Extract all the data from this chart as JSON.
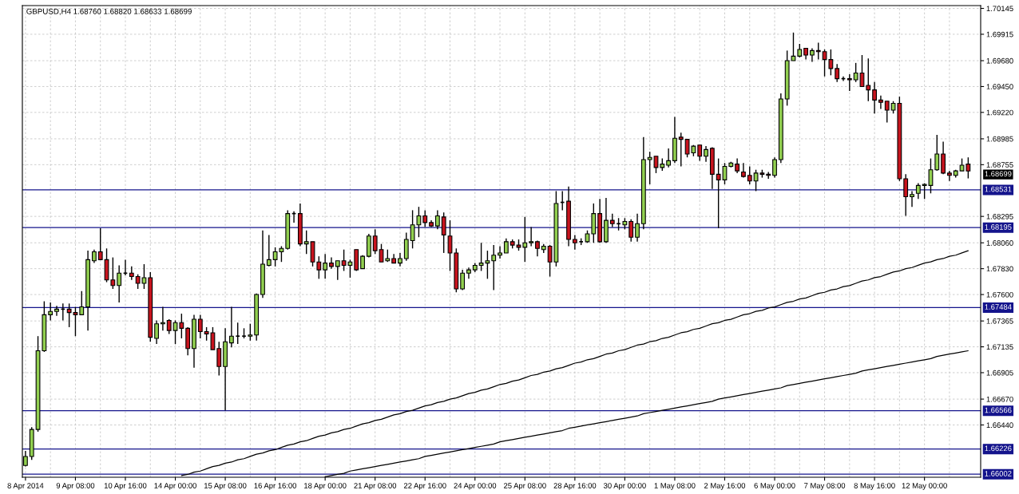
{
  "chart_data": {
    "type": "candlestick",
    "title": "GBPUSD,H4 1.68760 1.68820 1.68633 1.68699",
    "categories": [
      "8 Apr 2014",
      null,
      null,
      null,
      null,
      null,
      null,
      null,
      "9 Apr 08:00",
      null,
      null,
      null,
      null,
      null,
      null,
      null,
      "10 Apr 16:00",
      null,
      null,
      null,
      null,
      null,
      null,
      null,
      "14 Apr 00:00",
      null,
      null,
      null,
      null,
      null,
      null,
      null,
      "15 Apr 08:00",
      null,
      null,
      null,
      null,
      null,
      null,
      null,
      "16 Apr 16:00",
      null,
      null,
      null,
      null,
      null,
      null,
      null,
      "18 Apr 00:00",
      null,
      null,
      null,
      null,
      null,
      null,
      null,
      "21 Apr 08:00",
      null,
      null,
      null,
      null,
      null,
      null,
      null,
      "22 Apr 16:00",
      null,
      null,
      null,
      null,
      null,
      null,
      null,
      "24 Apr 00:00",
      null,
      null,
      null,
      null,
      null,
      null,
      null,
      "25 Apr 08:00",
      null,
      null,
      null,
      null,
      null,
      null,
      null,
      "28 Apr 16:00",
      null,
      null,
      null,
      null,
      null,
      null,
      null,
      "30 Apr 00:00",
      null,
      null,
      null,
      null,
      null,
      null,
      null,
      "1 May 08:00",
      null,
      null,
      null,
      null,
      null,
      null,
      null,
      "2 May 16:00",
      null,
      null,
      null,
      null,
      null,
      null,
      null,
      "6 May 00:00",
      null,
      null,
      null,
      null,
      null,
      null,
      null,
      "7 May 08:00",
      null,
      null,
      null,
      null,
      null,
      null,
      null,
      "8 May 16:00",
      null,
      null,
      null,
      null,
      null,
      null,
      null,
      "12 May 00:00",
      null,
      null,
      null,
      null,
      null,
      null,
      null
    ],
    "ohlc": [
      [
        1.6608,
        1.6621,
        1.6607,
        1.6616
      ],
      [
        1.6616,
        1.6642,
        1.6613,
        1.664
      ],
      [
        1.664,
        1.6723,
        1.6638,
        1.671
      ],
      [
        1.671,
        1.6754,
        1.6709,
        1.6742
      ],
      [
        1.6742,
        1.6753,
        1.6737,
        1.6745
      ],
      [
        1.6745,
        1.675,
        1.6741,
        1.6747
      ],
      [
        1.6747,
        1.6752,
        1.6737,
        1.6747
      ],
      [
        1.6747,
        1.6752,
        1.6731,
        1.6744
      ],
      [
        1.6744,
        1.6749,
        1.6723,
        1.6742
      ],
      [
        1.6742,
        1.6763,
        1.6742,
        1.6749
      ],
      [
        1.6749,
        1.6799,
        1.6728,
        1.6791
      ],
      [
        1.679,
        1.68,
        1.6788,
        1.6798
      ],
      [
        1.6798,
        1.6819,
        1.6791,
        1.6791
      ],
      [
        1.6791,
        1.6801,
        1.6771,
        1.6773
      ],
      [
        1.6773,
        1.6793,
        1.6765,
        1.6768
      ],
      [
        1.6768,
        1.6786,
        1.6753,
        1.6779
      ],
      [
        1.6779,
        1.6791,
        1.6777,
        1.6779
      ],
      [
        1.6779,
        1.6785,
        1.6773,
        1.6776
      ],
      [
        1.6776,
        1.6778,
        1.6765,
        1.677
      ],
      [
        1.677,
        1.6787,
        1.6765,
        1.6775
      ],
      [
        1.6775,
        1.678,
        1.6718,
        1.6722
      ],
      [
        1.6721,
        1.6737,
        1.6716,
        1.6734
      ],
      [
        1.6734,
        1.6749,
        1.6728,
        1.6735
      ],
      [
        1.6737,
        1.6738,
        1.6725,
        1.6728
      ],
      [
        1.6728,
        1.6737,
        1.6716,
        1.6735
      ],
      [
        1.6735,
        1.6743,
        1.6721,
        1.673
      ],
      [
        1.673,
        1.6731,
        1.6706,
        1.6712
      ],
      [
        1.6712,
        1.6742,
        1.6695,
        1.6738
      ],
      [
        1.6738,
        1.6742,
        1.6721,
        1.6727
      ],
      [
        1.6727,
        1.6731,
        1.6719,
        1.6725
      ],
      [
        1.6726,
        1.6731,
        1.6711,
        1.6711
      ],
      [
        1.6712,
        1.6718,
        1.6688,
        1.6696
      ],
      [
        1.6696,
        1.673,
        1.6657,
        1.6718
      ],
      [
        1.6717,
        1.6749,
        1.6713,
        1.6723
      ],
      [
        1.6723,
        1.6735,
        1.6716,
        1.6723
      ],
      [
        1.6723,
        1.673,
        1.6721,
        1.6723
      ],
      [
        1.6723,
        1.6734,
        1.6719,
        1.6724
      ],
      [
        1.6724,
        1.6761,
        1.6719,
        1.676
      ],
      [
        1.676,
        1.6817,
        1.6757,
        1.6787
      ],
      [
        1.6786,
        1.6813,
        1.6785,
        1.6791
      ],
      [
        1.6791,
        1.6802,
        1.6785,
        1.6798
      ],
      [
        1.6798,
        1.6803,
        1.6789,
        1.6801
      ],
      [
        1.6801,
        1.6835,
        1.68,
        1.6832
      ],
      [
        1.6832,
        1.6834,
        1.6824,
        1.6832
      ],
      [
        1.6832,
        1.6841,
        1.6803,
        1.6805
      ],
      [
        1.6805,
        1.6817,
        1.6796,
        1.6807
      ],
      [
        1.6807,
        1.6807,
        1.6785,
        1.6789
      ],
      [
        1.6789,
        1.6794,
        1.6774,
        1.6782
      ],
      [
        1.6782,
        1.6796,
        1.6774,
        1.6788
      ],
      [
        1.6788,
        1.6793,
        1.6783,
        1.6785
      ],
      [
        1.6785,
        1.679,
        1.6773,
        1.679
      ],
      [
        1.679,
        1.68,
        1.6781,
        1.6786
      ],
      [
        1.6786,
        1.6791,
        1.6775,
        1.6789
      ],
      [
        1.68,
        1.68,
        1.6781,
        1.6782
      ],
      [
        1.6783,
        1.6795,
        1.6783,
        1.6794
      ],
      [
        1.6794,
        1.6814,
        1.6793,
        1.6812
      ],
      [
        1.6812,
        1.6818,
        1.6796,
        1.6799
      ],
      [
        1.68,
        1.6805,
        1.6789,
        1.6789
      ],
      [
        1.679,
        1.68,
        1.6789,
        1.6792
      ],
      [
        1.6792,
        1.6796,
        1.6788,
        1.6788
      ],
      [
        1.6788,
        1.6797,
        1.6785,
        1.6792
      ],
      [
        1.6792,
        1.6815,
        1.679,
        1.6809
      ],
      [
        1.6808,
        1.6835,
        1.6801,
        1.6822
      ],
      [
        1.6822,
        1.6838,
        1.6811,
        1.683
      ],
      [
        1.683,
        1.6835,
        1.682,
        1.6824
      ],
      [
        1.6824,
        1.6826,
        1.682,
        1.6821
      ],
      [
        1.6821,
        1.6835,
        1.6818,
        1.683
      ],
      [
        1.6829,
        1.6833,
        1.6797,
        1.6813
      ],
      [
        1.6812,
        1.6826,
        1.6781,
        1.6797
      ],
      [
        1.6797,
        1.6801,
        1.6762,
        1.6765
      ],
      [
        1.6765,
        1.6782,
        1.6764,
        1.6779
      ],
      [
        1.6779,
        1.6784,
        1.6774,
        1.6782
      ],
      [
        1.6782,
        1.6788,
        1.678,
        1.6786
      ],
      [
        1.6786,
        1.6806,
        1.6781,
        1.6788
      ],
      [
        1.6788,
        1.6799,
        1.6774,
        1.679
      ],
      [
        1.679,
        1.6804,
        1.6764,
        1.6795
      ],
      [
        1.6795,
        1.6803,
        1.6792,
        1.6797
      ],
      [
        1.6797,
        1.681,
        1.6797,
        1.6807
      ],
      [
        1.6807,
        1.6809,
        1.6801,
        1.6804
      ],
      [
        1.6804,
        1.6809,
        1.6799,
        1.6802
      ],
      [
        1.6802,
        1.6829,
        1.6789,
        1.6806
      ],
      [
        1.6806,
        1.682,
        1.6803,
        1.6807
      ],
      [
        1.6807,
        1.6808,
        1.6794,
        1.6801
      ],
      [
        1.68,
        1.6805,
        1.6797,
        1.6803
      ],
      [
        1.6803,
        1.6804,
        1.6776,
        1.6789
      ],
      [
        1.6789,
        1.6852,
        1.6785,
        1.6841
      ],
      [
        1.6842,
        1.6852,
        1.6835,
        1.6842
      ],
      [
        1.6843,
        1.6856,
        1.6803,
        1.6809
      ],
      [
        1.6809,
        1.6813,
        1.68,
        1.6806
      ],
      [
        1.6807,
        1.681,
        1.6804,
        1.6807
      ],
      [
        1.6807,
        1.6817,
        1.6806,
        1.6814
      ],
      [
        1.6814,
        1.6841,
        1.6806,
        1.6832
      ],
      [
        1.6832,
        1.6845,
        1.6806,
        1.6807
      ],
      [
        1.6807,
        1.6846,
        1.6806,
        1.6826
      ],
      [
        1.6826,
        1.6832,
        1.682,
        1.6823
      ],
      [
        1.6823,
        1.6828,
        1.6817,
        1.6823
      ],
      [
        1.6822,
        1.6828,
        1.6818,
        1.6825
      ],
      [
        1.6825,
        1.6827,
        1.6807,
        1.6811
      ],
      [
        1.6811,
        1.6832,
        1.6807,
        1.6823
      ],
      [
        1.6823,
        1.69,
        1.6818,
        1.688
      ],
      [
        1.688,
        1.6887,
        1.6858,
        1.6882
      ],
      [
        1.6883,
        1.6883,
        1.6868,
        1.6873
      ],
      [
        1.6873,
        1.6881,
        1.687,
        1.6876
      ],
      [
        1.6875,
        1.689,
        1.6873,
        1.6879
      ],
      [
        1.6879,
        1.6918,
        1.6877,
        1.6899
      ],
      [
        1.69,
        1.6904,
        1.6874,
        1.6898
      ],
      [
        1.6898,
        1.6898,
        1.6882,
        1.6885
      ],
      [
        1.6886,
        1.6893,
        1.6883,
        1.6892
      ],
      [
        1.6893,
        1.6893,
        1.6879,
        1.6883
      ],
      [
        1.6883,
        1.6892,
        1.6878,
        1.6889
      ],
      [
        1.689,
        1.6891,
        1.6854,
        1.6867
      ],
      [
        1.6867,
        1.6881,
        1.6819,
        1.6862
      ],
      [
        1.6862,
        1.6877,
        1.6858,
        1.6874
      ],
      [
        1.6874,
        1.6878,
        1.6873,
        1.6877
      ],
      [
        1.6876,
        1.6881,
        1.6868,
        1.687
      ],
      [
        1.6869,
        1.6877,
        1.6864,
        1.6865
      ],
      [
        1.6866,
        1.6874,
        1.6858,
        1.6861
      ],
      [
        1.6861,
        1.6871,
        1.6852,
        1.6868
      ],
      [
        1.6868,
        1.6871,
        1.6864,
        1.6867
      ],
      [
        1.6867,
        1.6869,
        1.6863,
        1.6866
      ],
      [
        1.6866,
        1.6882,
        1.6864,
        1.688
      ],
      [
        1.688,
        1.6939,
        1.6877,
        1.6934
      ],
      [
        1.6934,
        1.6977,
        1.6928,
        1.6968
      ],
      [
        1.6968,
        1.6993,
        1.6968,
        1.6972
      ],
      [
        1.6972,
        1.6983,
        1.6971,
        1.6978
      ],
      [
        1.6979,
        1.6979,
        1.6969,
        1.6973
      ],
      [
        1.6973,
        1.6979,
        1.6967,
        1.6977
      ],
      [
        1.6977,
        1.6984,
        1.6969,
        1.6976
      ],
      [
        1.6976,
        1.6978,
        1.6954,
        1.6969
      ],
      [
        1.6969,
        1.6978,
        1.6955,
        1.6961
      ],
      [
        1.6961,
        1.6965,
        1.6949,
        1.6952
      ],
      [
        1.6952,
        1.6954,
        1.695,
        1.6952
      ],
      [
        1.6952,
        1.6956,
        1.6941,
        1.6951
      ],
      [
        1.6951,
        1.6966,
        1.6949,
        1.6957
      ],
      [
        1.6957,
        1.6973,
        1.6945,
        1.6945
      ],
      [
        1.6946,
        1.697,
        1.6932,
        1.6942
      ],
      [
        1.6942,
        1.6949,
        1.6921,
        1.6933
      ],
      [
        1.6933,
        1.6937,
        1.6925,
        1.6931
      ],
      [
        1.6932,
        1.6932,
        1.6913,
        1.6924
      ],
      [
        1.6924,
        1.6932,
        1.6921,
        1.693
      ],
      [
        1.693,
        1.6936,
        1.6861,
        1.6863
      ],
      [
        1.6863,
        1.6867,
        1.683,
        1.6847
      ],
      [
        1.6847,
        1.6852,
        1.6838,
        1.6849
      ],
      [
        1.685,
        1.6859,
        1.6845,
        1.6857
      ],
      [
        1.6857,
        1.6859,
        1.6845,
        1.6858
      ],
      [
        1.6857,
        1.6881,
        1.685,
        1.6871
      ],
      [
        1.6871,
        1.6902,
        1.687,
        1.6885
      ],
      [
        1.6885,
        1.6896,
        1.6867,
        1.6868
      ],
      [
        1.6868,
        1.687,
        1.6861,
        1.6866
      ],
      [
        1.6866,
        1.6871,
        1.6864,
        1.687
      ],
      [
        1.687,
        1.6881,
        1.687,
        1.6875
      ],
      [
        1.6876,
        1.6882,
        1.68633,
        1.68699
      ]
    ],
    "colors": [
      "#92d050",
      "#92d050",
      "#92d050",
      "#92d050",
      "#92d050",
      "#92d050",
      "#000000",
      "#c8141e",
      "#c8141e",
      "#92d050",
      "#92d050",
      "#92d050",
      "#c8141e",
      "#c8141e",
      "#c8141e",
      "#92d050",
      "#000000",
      "#c8141e",
      "#c8141e",
      "#92d050",
      "#c8141e",
      "#92d050",
      "#92d050",
      "#c8141e",
      "#92d050",
      "#c8141e",
      "#c8141e",
      "#92d050",
      "#c8141e",
      "#c8141e",
      "#c8141e",
      "#c8141e",
      "#92d050",
      "#92d050",
      "#000000",
      "#000000",
      "#92d050",
      "#92d050",
      "#92d050",
      "#92d050",
      "#92d050",
      "#92d050",
      "#92d050",
      "#000000",
      "#c8141e",
      "#92d050",
      "#c8141e",
      "#c8141e",
      "#92d050",
      "#c8141e",
      "#92d050",
      "#c8141e",
      "#92d050",
      "#c8141e",
      "#92d050",
      "#92d050",
      "#c8141e",
      "#c8141e",
      "#92d050",
      "#c8141e",
      "#92d050",
      "#92d050",
      "#92d050",
      "#92d050",
      "#c8141e",
      "#c8141e",
      "#92d050",
      "#c8141e",
      "#c8141e",
      "#c8141e",
      "#92d050",
      "#92d050",
      "#92d050",
      "#92d050",
      "#92d050",
      "#92d050",
      "#92d050",
      "#92d050",
      "#c8141e",
      "#c8141e",
      "#92d050",
      "#92d050",
      "#c8141e",
      "#92d050",
      "#c8141e",
      "#92d050",
      "#000000",
      "#c8141e",
      "#c8141e",
      "#000000",
      "#92d050",
      "#92d050",
      "#c8141e",
      "#92d050",
      "#c8141e",
      "#000000",
      "#92d050",
      "#c8141e",
      "#92d050",
      "#92d050",
      "#92d050",
      "#c8141e",
      "#92d050",
      "#92d050",
      "#92d050",
      "#c8141e",
      "#c8141e",
      "#92d050",
      "#c8141e",
      "#92d050",
      "#c8141e",
      "#c8141e",
      "#92d050",
      "#92d050",
      "#c8141e",
      "#c8141e",
      "#c8141e",
      "#92d050",
      "#c8141e",
      "#c8141e",
      "#92d050",
      "#92d050",
      "#92d050",
      "#92d050",
      "#92d050",
      "#c8141e",
      "#92d050",
      "#c8141e",
      "#c8141e",
      "#c8141e",
      "#c8141e",
      "#000000",
      "#c8141e",
      "#92d050",
      "#c8141e",
      "#c8141e",
      "#c8141e",
      "#c8141e",
      "#c8141e",
      "#92d050",
      "#c8141e",
      "#c8141e",
      "#92d050",
      "#92d050",
      "#92d050",
      "#92d050",
      "#92d050",
      "#c8141e",
      "#c8141e",
      "#92d050",
      "#92d050",
      "#c8141e"
    ],
    "series": [
      {
        "type": "line",
        "color": "#000000",
        "values": [
          null,
          null,
          null,
          null,
          null,
          null,
          null,
          null,
          null,
          null,
          null,
          null,
          null,
          null,
          null,
          null,
          null,
          null,
          null,
          null,
          null,
          null,
          null,
          null,
          null,
          1.6599,
          1.66,
          1.6602,
          1.6603,
          1.6605,
          1.6607,
          1.6608,
          1.661,
          1.6611,
          1.6613,
          1.6614,
          1.6616,
          1.6618,
          1.6619,
          1.6621,
          1.6622,
          1.6624,
          1.6626,
          1.6627,
          1.6629,
          1.663,
          1.6632,
          1.6634,
          1.6635,
          1.6637,
          1.6638,
          1.664,
          1.6641,
          1.6643,
          1.6645,
          1.6646,
          1.6648,
          1.6649,
          1.6651,
          1.6653,
          1.6654,
          1.6656,
          1.6657,
          1.6659,
          1.6661,
          1.6662,
          1.6664,
          1.6665,
          1.6667,
          1.6668,
          1.667,
          1.6672,
          1.6673,
          1.6675,
          1.6676,
          1.6678,
          1.668,
          1.6681,
          1.6683,
          1.6684,
          1.6686,
          1.6688,
          1.6689,
          1.6691,
          1.6692,
          1.6694,
          1.6695,
          1.6697,
          1.6699,
          1.67,
          1.6702,
          1.6703,
          1.6705,
          1.6707,
          1.6708,
          1.671,
          1.6711,
          1.6713,
          1.6715,
          1.6716,
          1.6718,
          1.6719,
          1.6721,
          1.6722,
          1.6724,
          1.6726,
          1.6727,
          1.6729,
          1.673,
          1.6732,
          1.6734,
          1.6735,
          1.6737,
          1.6738,
          1.674,
          1.6742,
          1.6743,
          1.6745,
          1.6746,
          1.6748,
          1.6749,
          1.6751,
          1.6753,
          1.6754,
          1.6756,
          1.6757,
          1.6759,
          1.6761,
          1.6762,
          1.6764,
          1.6765,
          1.6767,
          1.6768,
          1.677,
          1.6772,
          1.6773,
          1.6775,
          1.6776,
          1.6778,
          1.678,
          1.6781,
          1.6783,
          1.6784,
          1.6786,
          1.6788,
          1.6789,
          1.6791,
          1.6792,
          1.6794,
          1.6795,
          1.6797,
          1.6799
        ]
      },
      {
        "type": "line",
        "color": "#000000",
        "values": [
          null,
          null,
          null,
          null,
          null,
          null,
          null,
          null,
          null,
          null,
          null,
          null,
          null,
          null,
          null,
          null,
          null,
          null,
          null,
          null,
          null,
          null,
          null,
          null,
          null,
          null,
          null,
          null,
          null,
          null,
          null,
          null,
          null,
          null,
          null,
          null,
          null,
          null,
          null,
          null,
          null,
          null,
          null,
          null,
          null,
          null,
          null,
          null,
          1.6598,
          1.6599,
          1.66,
          1.6601,
          1.6603,
          1.6604,
          1.6605,
          1.6606,
          1.6607,
          1.6608,
          1.6609,
          1.661,
          1.6611,
          1.6612,
          1.6613,
          1.6614,
          1.6616,
          1.6617,
          1.6618,
          1.6619,
          1.662,
          1.6621,
          1.6622,
          1.6623,
          1.6624,
          1.6625,
          1.6626,
          1.6627,
          1.6629,
          1.663,
          1.6631,
          1.6632,
          1.6633,
          1.6634,
          1.6635,
          1.6636,
          1.6637,
          1.6638,
          1.6639,
          1.6641,
          1.6642,
          1.6643,
          1.6644,
          1.6645,
          1.6646,
          1.6647,
          1.6648,
          1.6649,
          1.665,
          1.6651,
          1.6652,
          1.6654,
          1.6655,
          1.6656,
          1.6657,
          1.6658,
          1.6659,
          1.666,
          1.6661,
          1.6662,
          1.6663,
          1.6664,
          1.6665,
          1.6667,
          1.6668,
          1.6669,
          1.667,
          1.6671,
          1.6672,
          1.6673,
          1.6674,
          1.6675,
          1.6676,
          1.6677,
          1.6679,
          1.668,
          1.6681,
          1.6682,
          1.6683,
          1.6684,
          1.6685,
          1.6686,
          1.6687,
          1.6688,
          1.6689,
          1.669,
          1.6692,
          1.6693,
          1.6694,
          1.6695,
          1.6696,
          1.6697,
          1.6698,
          1.6699,
          1.67,
          1.6701,
          1.6702,
          1.6703,
          1.6705,
          1.6706,
          1.6707,
          1.6708,
          1.6709,
          1.671
        ]
      }
    ],
    "ylim": [
      1.65975,
      1.7017
    ],
    "yticks": [
      {
        "value": 1.6644,
        "label": "1.66440"
      },
      {
        "value": 1.6667,
        "label": "1.66670"
      },
      1.66905,
      1.67135,
      1.67365,
      {
        "value": 1.676,
        "label": "1.67600"
      },
      {
        "value": 1.6783,
        "label": "1.67830"
      },
      {
        "value": 1.6806,
        "label": "1.68060"
      },
      1.68295,
      1.68755,
      1.68985,
      {
        "value": 1.6922,
        "label": "1.69220"
      },
      {
        "value": 1.6945,
        "label": "1.69450"
      },
      {
        "value": 1.6968,
        "label": "1.69680"
      },
      1.69915,
      1.70145
    ],
    "ref_lines": [
      {
        "axis": "y",
        "value": 1.68531,
        "label": "1.68531",
        "color": "#14148c"
      },
      {
        "axis": "y",
        "value": 1.68195,
        "label": "1.68195",
        "color": "#14148c"
      },
      {
        "axis": "y",
        "value": 1.67484,
        "label": "1.67484",
        "color": "#14148c"
      },
      {
        "axis": "y",
        "value": 1.66566,
        "label": "1.66566",
        "color": "#14148c"
      },
      {
        "axis": "y",
        "value": 1.66226,
        "label": "1.66226",
        "color": "#14148c"
      },
      {
        "axis": "y",
        "value": 1.66002,
        "label": "1.66002",
        "color": "#14148c"
      }
    ],
    "annotations": [
      "1.68699"
    ],
    "grid": true
  }
}
